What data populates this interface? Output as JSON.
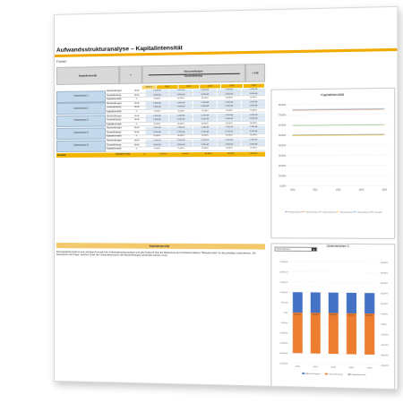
{
  "title": "Aufwandsstrukturanalyse – Kapitalintensität",
  "formula_label": "Formel:",
  "table": {
    "header_name": "Kapitalintensität",
    "header_eq": "=",
    "header_num": "Abschreibungen",
    "header_den": "Gesamtleistung",
    "header_mult": "× 100",
    "years": [
      "Einheit",
      "2020",
      "2021",
      "2022",
      "2023",
      "2024"
    ],
    "companies": [
      {
        "name": "Unternehmen 1",
        "rows": [
          {
            "label": "Abschreibungen",
            "unit": "TEUR",
            "values": [
              "1.000,00",
              "1.000,00",
              "1.000,00",
              "1.000,00",
              "1.000,00"
            ]
          },
          {
            "label": "Gesamtleistung",
            "unit": "TEUR",
            "values": [
              "2.000,00",
              "2.000,00",
              "2.000,00",
              "2.000,00",
              "2.000,00"
            ]
          },
          {
            "label": "Kapitalintensität",
            "unit": "%",
            "values": [
              "50,00%",
              "50,00%",
              "50,00%",
              "50,00%",
              "50,00%"
            ]
          }
        ]
      },
      {
        "name": "Unternehmen 2",
        "rows": [
          {
            "label": "Abschreibungen",
            "unit": "TEUR",
            "values": [
              "1.200,00",
              "1.200,00",
              "1.200,00",
              "1.200,00",
              "1.200,00"
            ]
          },
          {
            "label": "Gesamtleistung",
            "unit": "TEUR",
            "values": [
              "1.600,00",
              "1.600,00",
              "1.600,00",
              "1.600,00",
              "1.600,00"
            ]
          },
          {
            "label": "Kapitalintensität",
            "unit": "%",
            "values": [
              "75,00%",
              "75,00%",
              "75,00%",
              "75,00%",
              "75,00%"
            ]
          }
        ]
      },
      {
        "name": "Unternehmen 3",
        "rows": [
          {
            "label": "Abschreibungen",
            "unit": "TEUR",
            "values": [
              "1.250,00",
              "1.250,00",
              "1.250,00",
              "1.250,00",
              "1.250,00"
            ]
          },
          {
            "label": "Gesamtleistung",
            "unit": "TEUR",
            "values": [
              "2.500,00",
              "2.500,00",
              "2.500,00",
              "2.500,00",
              "2.500,00"
            ]
          },
          {
            "label": "Kapitalintensität",
            "unit": "%",
            "values": [
              "50,00%",
              "50,00%",
              "50,00%",
              "50,00%",
              "50,00%"
            ]
          }
        ]
      },
      {
        "name": "Unternehmen 4",
        "rows": [
          {
            "label": "Abschreibungen",
            "unit": "TEUR",
            "values": [
              "1.350,00",
              "1.350,00",
              "1.350,00",
              "1.350,00",
              "1.350,00"
            ]
          },
          {
            "label": "Gesamtleistung",
            "unit": "TEUR",
            "values": [
              "2.700,00",
              "2.700,00",
              "2.700,00",
              "2.700,00",
              "2.700,00"
            ]
          },
          {
            "label": "Kapitalintensität",
            "unit": "%",
            "values": [
              "50,00%",
              "50,00%",
              "50,00%",
              "50,00%",
              "50,00%"
            ]
          }
        ]
      },
      {
        "name": "Unternehmen 5",
        "rows": [
          {
            "label": "Abschreibungen",
            "unit": "TEUR",
            "values": [
              "1.500,00",
              "1.500,00",
              "1.500,00",
              "1.500,00",
              "1.500,00"
            ]
          },
          {
            "label": "Gesamtleistung",
            "unit": "TEUR",
            "values": [
              "2.000,00",
              "2.000,00",
              "2.000,00",
              "2.000,00",
              "2.000,00"
            ]
          },
          {
            "label": "Kapitalintensität",
            "unit": "%",
            "values": [
              "75,00%",
              "75,00%",
              "75,00%",
              "75,00%",
              "75,00%"
            ]
          }
        ]
      }
    ],
    "total": {
      "name": "Gesamt",
      "label": "Kapitalintensität",
      "unit": "%",
      "values": [
        "60,00%",
        "60,00%",
        "60,00%",
        "60,00%",
        "60,00%"
      ]
    }
  },
  "section_head": "Kapitalintensität",
  "description": "Die Kapitalintensität ist eine wichtige Kennzahl der Aufwandsstrukturanalyse und gibt Auskunft über die Bedeutung des Produktionsfaktors \"Betriebsmittel\" für das jeweilige Unternehmen. Sie beantwortet die Frage, welchen Anteil der Gesamtleistung für die Abschreibungen verwendet werden muss.",
  "colors": {
    "accent": "#f2a900",
    "blue": "#4472c4",
    "orange": "#ed7d31",
    "grey": "#a5a5a5",
    "yellow": "#ffc000"
  },
  "chart1": {
    "title": "Kapitalintensität",
    "y_ticks": [
      "80,00%",
      "70,00%",
      "60,00%",
      "50,00%",
      "40,00%",
      "30,00%",
      "20,00%",
      "10,00%",
      "0,00%"
    ],
    "x_ticks": [
      "2020",
      "2021",
      "2022",
      "2023",
      "2024"
    ],
    "legend": [
      "Unternehmen 1",
      "Unternehmen 2",
      "Unternehmen 3",
      "Unternehmen 4",
      "Unternehmen 5",
      "Gesamt"
    ]
  },
  "chart2": {
    "dropdown_value": "Unternehmen 1",
    "title": "Unternehmen 1",
    "y_left_ticks": [
      "2.500,00",
      "2.000,00",
      "1.500,00",
      "1.000,00",
      "500,00",
      "0,00",
      "-500,00",
      "-1.000,00",
      "-1.500,00",
      "-2.000,00",
      "-2.500,00"
    ],
    "y_right_ticks": [
      "60,00%",
      "50,00%",
      "40,00%",
      "30,00%",
      "20,00%",
      "10,00%",
      "0,00%",
      "-10,00%",
      "-20,00%",
      "-30,00%",
      "-40,00%"
    ],
    "x_ticks": [
      "2020",
      "2021",
      "2022",
      "2023",
      "2024"
    ],
    "bar_labels": [
      "50,00%",
      "50,00%",
      "50,00%",
      "50,00%",
      "50,00%"
    ],
    "legend": [
      "Abschreibungen",
      "Gesamtleistung",
      "Kapitalintensität"
    ]
  },
  "chart_data": [
    {
      "type": "line",
      "title": "Kapitalintensität",
      "x": [
        "2020",
        "2021",
        "2022",
        "2023",
        "2024"
      ],
      "ylim": [
        0,
        80
      ],
      "series": [
        {
          "name": "Unternehmen 1",
          "values": [
            50,
            50,
            50,
            50,
            50
          ]
        },
        {
          "name": "Unternehmen 2",
          "values": [
            75,
            75,
            75,
            75,
            75
          ]
        },
        {
          "name": "Unternehmen 3",
          "values": [
            50,
            50,
            50,
            50,
            50
          ]
        },
        {
          "name": "Unternehmen 4",
          "values": [
            50,
            50,
            50,
            50,
            50
          ]
        },
        {
          "name": "Unternehmen 5",
          "values": [
            75,
            75,
            75,
            75,
            75
          ]
        },
        {
          "name": "Gesamt",
          "values": [
            60,
            60,
            60,
            60,
            60
          ]
        }
      ],
      "legend": "bottom"
    },
    {
      "type": "bar",
      "title": "Unternehmen 1",
      "categories": [
        "2020",
        "2021",
        "2022",
        "2023",
        "2024"
      ],
      "ylim": [
        -2500,
        2500
      ],
      "series": [
        {
          "name": "Abschreibungen",
          "values": [
            1000,
            1000,
            1000,
            1000,
            1000
          ]
        },
        {
          "name": "Gesamtleistung",
          "values": [
            -2000,
            -2000,
            -2000,
            -2000,
            -2000
          ]
        },
        {
          "name": "Kapitalintensität",
          "values": [
            50,
            50,
            50,
            50,
            50
          ]
        }
      ],
      "legend": "bottom"
    }
  ]
}
